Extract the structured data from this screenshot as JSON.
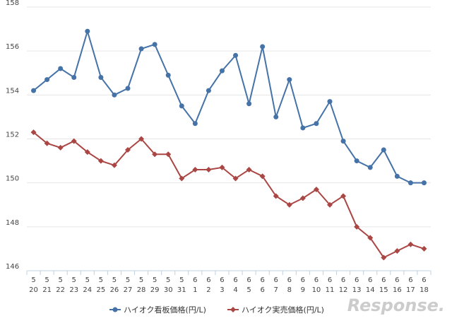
{
  "chart_data": {
    "type": "line",
    "categories": [
      [
        "5",
        "20"
      ],
      [
        "5",
        "21"
      ],
      [
        "5",
        "22"
      ],
      [
        "5",
        "23"
      ],
      [
        "5",
        "24"
      ],
      [
        "5",
        "25"
      ],
      [
        "5",
        "26"
      ],
      [
        "5",
        "27"
      ],
      [
        "5",
        "28"
      ],
      [
        "5",
        "29"
      ],
      [
        "5",
        "30"
      ],
      [
        "5",
        "31"
      ],
      [
        "6",
        "1"
      ],
      [
        "6",
        "2"
      ],
      [
        "6",
        "3"
      ],
      [
        "6",
        "4"
      ],
      [
        "6",
        "5"
      ],
      [
        "6",
        "6"
      ],
      [
        "6",
        "7"
      ],
      [
        "6",
        "8"
      ],
      [
        "6",
        "9"
      ],
      [
        "6",
        "10"
      ],
      [
        "6",
        "11"
      ],
      [
        "6",
        "12"
      ],
      [
        "6",
        "13"
      ],
      [
        "6",
        "14"
      ],
      [
        "6",
        "15"
      ],
      [
        "6",
        "16"
      ],
      [
        "6",
        "17"
      ],
      [
        "6",
        "18"
      ]
    ],
    "series": [
      {
        "name": "ハイオク看板価格(円/L)",
        "color": "#4572a7",
        "values": [
          154.2,
          154.7,
          155.2,
          154.8,
          156.9,
          154.8,
          154.0,
          154.3,
          156.1,
          156.3,
          154.9,
          153.5,
          152.7,
          154.2,
          155.1,
          155.8,
          153.6,
          156.2,
          153.0,
          154.7,
          152.5,
          152.7,
          153.7,
          151.9,
          151.0,
          150.7,
          151.5,
          150.3,
          150.0,
          150.0
        ]
      },
      {
        "name": "ハイオク実売価格(円/L)",
        "color": "#aa4643",
        "values": [
          152.3,
          151.8,
          151.6,
          151.9,
          151.4,
          151.0,
          150.8,
          151.5,
          152.0,
          151.3,
          151.3,
          150.2,
          150.6,
          150.6,
          150.7,
          150.2,
          150.6,
          150.3,
          149.4,
          149.0,
          149.3,
          149.7,
          149.0,
          149.4,
          148.0,
          147.5,
          146.6,
          146.9,
          147.2,
          147.0
        ]
      }
    ],
    "ylim": [
      146,
      158
    ],
    "yticks": [
      146,
      148,
      150,
      152,
      154,
      156,
      158
    ],
    "grid": true,
    "watermark": "Response."
  }
}
